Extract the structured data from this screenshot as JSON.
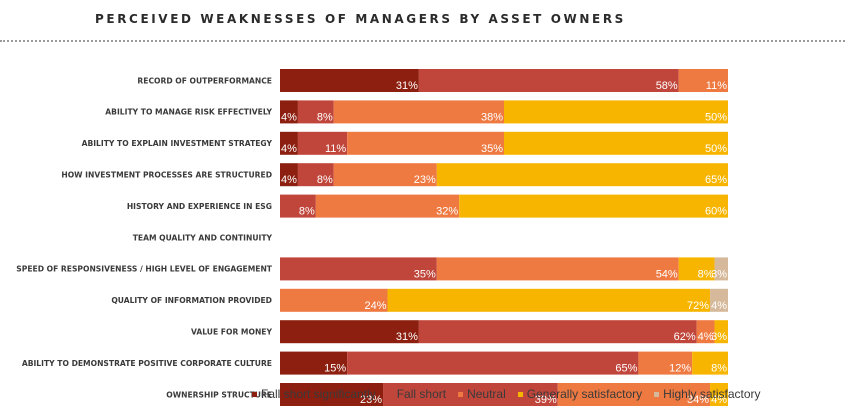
{
  "title": "PERCEIVED WEAKNESSES OF MANAGERS BY ASSET OWNERS",
  "chart_data": {
    "type": "bar",
    "orientation": "horizontal",
    "stacked": true,
    "categories": [
      "RECORD OF OUTPERFORMANCE",
      "ABILITY TO MANAGE RISK EFFECTIVELY",
      "ABILITY TO EXPLAIN INVESTMENT STRATEGY",
      "HOW INVESTMENT PROCESSES ARE STRUCTURED",
      "HISTORY AND EXPERIENCE IN ESG",
      "TEAM QUALITY AND CONTINUITY",
      "SPEED OF RESPONSIVENESS / HIGH LEVEL OF ENGAGEMENT",
      "QUALITY OF INFORMATION PROVIDED",
      "VALUE FOR MONEY",
      "ABILITY TO DEMONSTRATE POSITIVE CORPORATE CULTURE",
      "OWNERSHIP STRUCTURE"
    ],
    "series": [
      {
        "name": "Fall short significantly",
        "color": "#8c1f10",
        "values": [
          31,
          4,
          4,
          4,
          0,
          0,
          0,
          0,
          31,
          15,
          23
        ]
      },
      {
        "name": "Fall short",
        "color": "#c0453a",
        "values": [
          58,
          8,
          11,
          8,
          8,
          0,
          35,
          0,
          62,
          65,
          39
        ]
      },
      {
        "name": "Neutral",
        "color": "#ee7a42",
        "values": [
          11,
          38,
          35,
          23,
          32,
          0,
          54,
          24,
          4,
          12,
          34
        ]
      },
      {
        "name": "Generally satisfactory",
        "color": "#f7b500",
        "values": [
          0,
          50,
          50,
          65,
          60,
          0,
          8,
          72,
          3,
          8,
          4
        ]
      },
      {
        "name": "Highly satisfactory",
        "color": "#d5b99a",
        "values": [
          0,
          0,
          0,
          0,
          0,
          0,
          3,
          4,
          0,
          0,
          0
        ]
      }
    ],
    "xlim": [
      0,
      100
    ],
    "legend_position": "bottom",
    "grid": false
  }
}
